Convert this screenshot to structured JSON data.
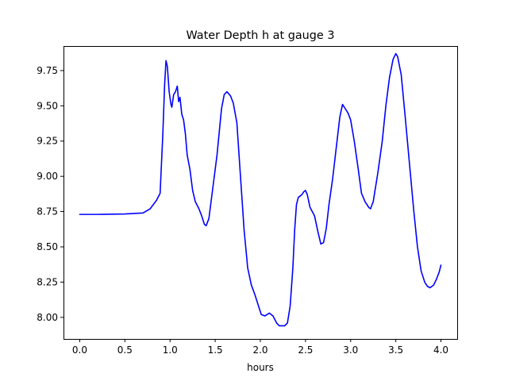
{
  "chart_data": {
    "type": "line",
    "title": "Water Depth h at gauge 3",
    "xlabel": "hours",
    "ylabel": "",
    "xlim": [
      -0.18,
      4.18
    ],
    "ylim": [
      7.847,
      9.924
    ],
    "xticks": [
      0.0,
      0.5,
      1.0,
      1.5,
      2.0,
      2.5,
      3.0,
      3.5,
      4.0
    ],
    "xtick_labels": [
      "0.0",
      "0.5",
      "1.0",
      "1.5",
      "2.0",
      "2.5",
      "3.0",
      "3.5",
      "4.0"
    ],
    "yticks": [
      8.0,
      8.25,
      8.5,
      8.75,
      9.0,
      9.25,
      9.5,
      9.75
    ],
    "ytick_labels": [
      "8.00",
      "8.25",
      "8.50",
      "8.75",
      "9.00",
      "9.25",
      "9.50",
      "9.75"
    ],
    "grid": false,
    "series": [
      {
        "color": "#0000ff",
        "points": [
          [
            0.0,
            8.73
          ],
          [
            0.2,
            8.73
          ],
          [
            0.5,
            8.733
          ],
          [
            0.7,
            8.74
          ],
          [
            0.78,
            8.77
          ],
          [
            0.85,
            8.83
          ],
          [
            0.89,
            8.88
          ],
          [
            0.92,
            9.3
          ],
          [
            0.94,
            9.65
          ],
          [
            0.955,
            9.82
          ],
          [
            0.97,
            9.78
          ],
          [
            0.99,
            9.6
          ],
          [
            1.01,
            9.51
          ],
          [
            1.02,
            9.49
          ],
          [
            1.04,
            9.58
          ],
          [
            1.06,
            9.6
          ],
          [
            1.08,
            9.64
          ],
          [
            1.095,
            9.53
          ],
          [
            1.11,
            9.56
          ],
          [
            1.13,
            9.44
          ],
          [
            1.15,
            9.4
          ],
          [
            1.17,
            9.3
          ],
          [
            1.19,
            9.15
          ],
          [
            1.22,
            9.05
          ],
          [
            1.25,
            8.9
          ],
          [
            1.28,
            8.82
          ],
          [
            1.32,
            8.77
          ],
          [
            1.35,
            8.72
          ],
          [
            1.38,
            8.66
          ],
          [
            1.4,
            8.65
          ],
          [
            1.43,
            8.7
          ],
          [
            1.47,
            8.9
          ],
          [
            1.52,
            9.15
          ],
          [
            1.57,
            9.48
          ],
          [
            1.6,
            9.58
          ],
          [
            1.63,
            9.6
          ],
          [
            1.67,
            9.57
          ],
          [
            1.7,
            9.52
          ],
          [
            1.74,
            9.38
          ],
          [
            1.78,
            9.0
          ],
          [
            1.82,
            8.62
          ],
          [
            1.86,
            8.35
          ],
          [
            1.9,
            8.23
          ],
          [
            1.94,
            8.16
          ],
          [
            1.98,
            8.08
          ],
          [
            2.01,
            8.02
          ],
          [
            2.05,
            8.01
          ],
          [
            2.1,
            8.03
          ],
          [
            2.14,
            8.01
          ],
          [
            2.18,
            7.96
          ],
          [
            2.21,
            7.94
          ],
          [
            2.27,
            7.94
          ],
          [
            2.3,
            7.96
          ],
          [
            2.33,
            8.08
          ],
          [
            2.36,
            8.35
          ],
          [
            2.38,
            8.62
          ],
          [
            2.4,
            8.8
          ],
          [
            2.42,
            8.85
          ],
          [
            2.46,
            8.87
          ],
          [
            2.48,
            8.89
          ],
          [
            2.5,
            8.9
          ],
          [
            2.52,
            8.87
          ],
          [
            2.55,
            8.78
          ],
          [
            2.6,
            8.72
          ],
          [
            2.64,
            8.6
          ],
          [
            2.67,
            8.52
          ],
          [
            2.7,
            8.53
          ],
          [
            2.73,
            8.63
          ],
          [
            2.76,
            8.8
          ],
          [
            2.8,
            8.98
          ],
          [
            2.84,
            9.2
          ],
          [
            2.88,
            9.42
          ],
          [
            2.91,
            9.51
          ],
          [
            2.94,
            9.48
          ],
          [
            2.97,
            9.45
          ],
          [
            3.0,
            9.4
          ],
          [
            3.04,
            9.25
          ],
          [
            3.08,
            9.07
          ],
          [
            3.12,
            8.88
          ],
          [
            3.16,
            8.82
          ],
          [
            3.2,
            8.78
          ],
          [
            3.22,
            8.77
          ],
          [
            3.25,
            8.82
          ],
          [
            3.3,
            9.02
          ],
          [
            3.35,
            9.25
          ],
          [
            3.39,
            9.5
          ],
          [
            3.43,
            9.7
          ],
          [
            3.47,
            9.83
          ],
          [
            3.5,
            9.87
          ],
          [
            3.52,
            9.85
          ],
          [
            3.56,
            9.72
          ],
          [
            3.6,
            9.45
          ],
          [
            3.65,
            9.1
          ],
          [
            3.7,
            8.75
          ],
          [
            3.74,
            8.5
          ],
          [
            3.78,
            8.33
          ],
          [
            3.82,
            8.25
          ],
          [
            3.85,
            8.22
          ],
          [
            3.88,
            8.21
          ],
          [
            3.92,
            8.23
          ],
          [
            3.95,
            8.27
          ],
          [
            3.98,
            8.32
          ],
          [
            4.0,
            8.37
          ]
        ]
      }
    ]
  }
}
